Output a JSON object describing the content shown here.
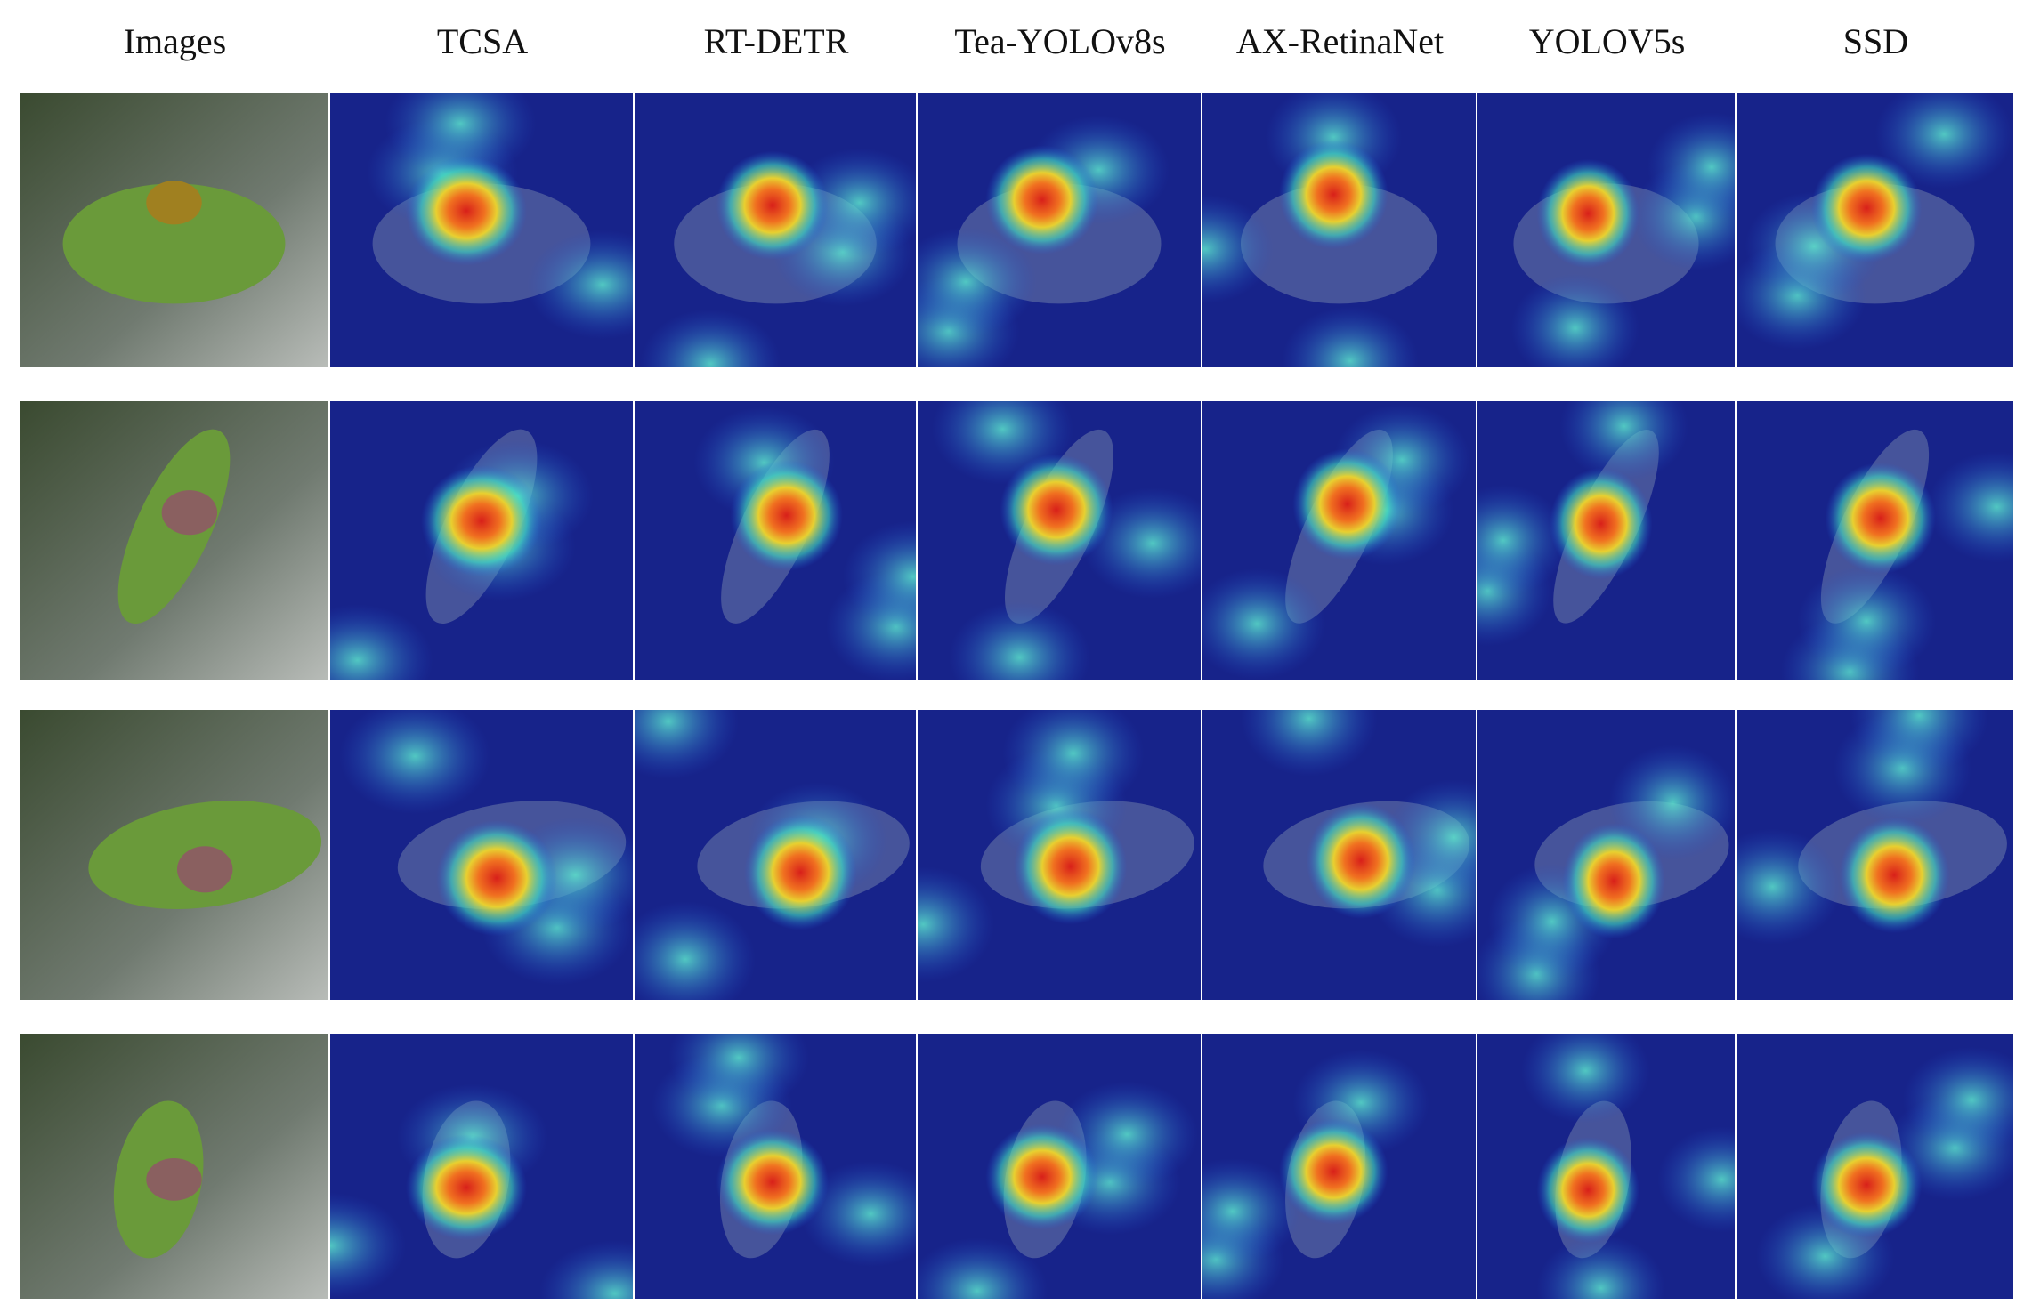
{
  "columns": [
    "Images",
    "TCSA",
    "RT-DETR",
    "Tea-YOLOv8s",
    "AX-RetinaNet",
    "YOLOV5s",
    "SSD"
  ]
}
